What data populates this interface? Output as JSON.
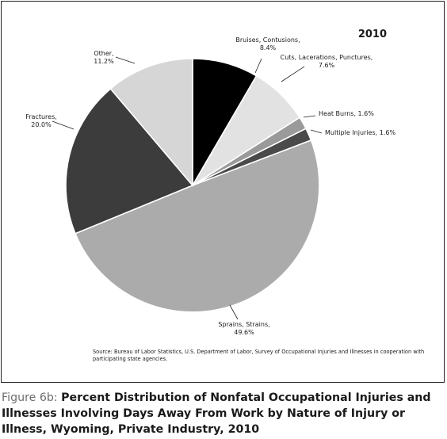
{
  "chart_data": {
    "type": "pie",
    "year_label": "2010",
    "slices": [
      {
        "name_lines": [
          "Bruises, Contusions,"
        ],
        "pct_label": "8.4%",
        "value": 8.4,
        "color": "#000000"
      },
      {
        "name_lines": [
          "Cuts, Lacerations, Punctures,"
        ],
        "pct_label": "7.6%",
        "value": 7.6,
        "color": "#e2e2e2"
      },
      {
        "name_lines": [
          "Heat Burns, 1.6%"
        ],
        "pct_label": "",
        "value": 1.6,
        "color": "#9a9a9a"
      },
      {
        "name_lines": [
          "Multiple Injuries, 1.6%"
        ],
        "pct_label": "",
        "value": 1.6,
        "color": "#4a4a4a"
      },
      {
        "name_lines": [
          "Sprains, Strains,"
        ],
        "pct_label": "49.6%",
        "value": 49.6,
        "color": "#ababab"
      },
      {
        "name_lines": [
          "Fractures,"
        ],
        "pct_label": "20.0%",
        "value": 20.0,
        "color": "#3c3c3c"
      },
      {
        "name_lines": [
          "Other,"
        ],
        "pct_label": "11.2%",
        "value": 11.2,
        "color": "#d6d6d6"
      }
    ]
  },
  "source_text": "Source: Bureau of Labor Statistics, U.S. Department of Labor, Survey of Occupational Injuries and Illnesses in cooperation with participating state agencies.",
  "caption": {
    "prefix": "Figure 6b: ",
    "text": "Percent Distribution of Nonfatal Occupational Injuries and Illnesses Involving Days Away From Work by Nature of Injury or Illness, Wyoming, Private Industry, 2010"
  }
}
